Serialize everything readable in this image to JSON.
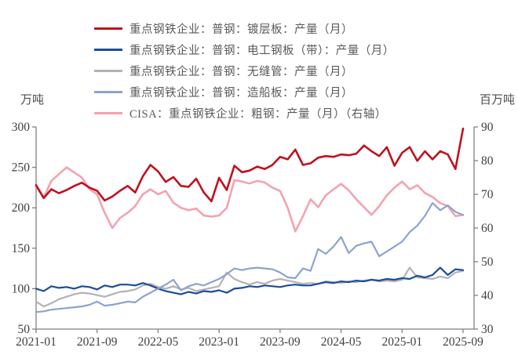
{
  "chart_data": {
    "type": "line",
    "title": "",
    "legend_position": "top-left",
    "x": [
      "2021-01",
      "2021-02",
      "2021-03",
      "2021-04",
      "2021-05",
      "2021-06",
      "2021-07",
      "2021-08",
      "2021-09",
      "2021-10",
      "2021-11",
      "2021-12",
      "2022-01",
      "2022-02",
      "2022-03",
      "2022-04",
      "2022-05",
      "2022-06",
      "2022-07",
      "2022-08",
      "2022-09",
      "2022-10",
      "2022-11",
      "2022-12",
      "2023-01",
      "2023-02",
      "2023-03",
      "2023-04",
      "2023-05",
      "2023-06",
      "2023-07",
      "2023-08",
      "2023-09",
      "2023-10",
      "2023-11",
      "2023-12",
      "2024-01",
      "2024-02",
      "2024-03",
      "2024-04",
      "2024-05",
      "2024-06",
      "2024-07",
      "2024-08",
      "2024-09",
      "2024-10",
      "2024-11",
      "2024-12",
      "2025-01",
      "2025-02",
      "2025-03",
      "2025-04",
      "2025-05",
      "2025-06",
      "2025-07",
      "2025-08",
      "2025-09"
    ],
    "x_tick_labels": [
      "2021-01",
      "2021-09",
      "2022-05",
      "2023-01",
      "2023-09",
      "2024-05",
      "2025-01",
      "2025-09"
    ],
    "x_tick_month_index": [
      0,
      8,
      16,
      24,
      32,
      40,
      48,
      56
    ],
    "left_axis": {
      "unit": "万吨",
      "min": 50,
      "max": 300,
      "ticks": [
        300,
        250,
        200,
        150,
        100,
        50
      ]
    },
    "right_axis": {
      "unit": "百万吨",
      "min": 30,
      "max": 90,
      "ticks": [
        90,
        80,
        70,
        60,
        50,
        40,
        30
      ]
    },
    "grid": false,
    "series": [
      {
        "id": "seamless-tube",
        "name": "重点钢铁企业：普钢：无缝管：产量（月）",
        "axis": "left",
        "color": "#b3b3b3",
        "values": [
          84,
          78,
          82,
          87,
          90,
          93,
          95,
          94,
          92,
          90,
          93,
          96,
          97,
          99,
          104,
          106,
          102,
          100,
          103,
          99,
          101,
          97,
          99,
          101,
          103,
          120,
          112,
          108,
          105,
          108,
          106,
          110,
          112,
          110,
          108,
          106,
          107,
          106,
          109,
          108,
          107,
          109,
          108,
          110,
          111,
          109,
          110,
          109,
          111,
          126,
          114,
          113,
          112,
          115,
          113,
          120,
          122
        ]
      },
      {
        "id": "electrical-sheet",
        "name": "重点钢铁企业：普钢：电工钢板（带）：产量（月）",
        "axis": "left",
        "color": "#1c4c9c",
        "values": [
          100,
          97,
          103,
          101,
          102,
          100,
          103,
          102,
          99,
          104,
          102,
          105,
          105,
          104,
          107,
          104,
          100,
          97,
          95,
          93,
          96,
          94,
          97,
          96,
          98,
          95,
          100,
          101,
          103,
          102,
          104,
          103,
          102,
          104,
          105,
          104,
          104,
          106,
          108,
          107,
          109,
          108,
          110,
          109,
          111,
          110,
          112,
          111,
          113,
          112,
          116,
          114,
          117,
          126,
          117,
          124,
          123
        ]
      },
      {
        "id": "crude-steel-cisa",
        "name": "CISA：重点钢铁企业：粗钢：产量（月）（右轴）",
        "axis": "right",
        "color": "#f3a3ae",
        "values": [
          72.5,
          69,
          74,
          76,
          78,
          76.5,
          75,
          71.5,
          70,
          64.5,
          60,
          63,
          64.5,
          66.5,
          70,
          71.5,
          70,
          71,
          67.5,
          66,
          65.3,
          65.8,
          63.7,
          63.4,
          63.7,
          66,
          74.2,
          73.8,
          73.2,
          74,
          73.5,
          72,
          71,
          66,
          59,
          63.5,
          68.5,
          66.2,
          69.7,
          71.5,
          73.1,
          71.2,
          68.5,
          66.2,
          63.9,
          66.5,
          69.7,
          72,
          73.8,
          71.5,
          72.7,
          70.4,
          69.2,
          67.4,
          66.5,
          63.5,
          63.9
        ]
      },
      {
        "id": "shipbuilding-plate",
        "name": "重点钢铁企业：普钢：造船板：产量（月）",
        "axis": "left",
        "color": "#8ca3cd",
        "values": [
          71,
          72,
          74,
          75,
          76,
          77,
          78,
          80,
          84,
          79,
          80,
          82,
          84,
          83,
          90,
          95,
          100,
          105,
          111,
          98,
          103,
          106,
          104,
          108,
          112,
          118,
          125,
          123,
          125,
          126,
          125,
          124,
          120,
          114,
          113,
          125,
          122,
          149,
          143,
          152,
          164,
          144,
          153,
          156,
          158,
          140,
          146,
          152,
          158,
          170,
          178,
          190,
          206,
          197,
          203,
          195,
          191
        ]
      },
      {
        "id": "coated-sheet",
        "name": "重点钢铁企业：普钢：镀层板：产量（月）",
        "axis": "left",
        "color": "#c0111f",
        "values": [
          228,
          212,
          223,
          218,
          222,
          227,
          231,
          225,
          221,
          209,
          214,
          221,
          227,
          219,
          239,
          253,
          245,
          232,
          238,
          227,
          226,
          236,
          219,
          208,
          237,
          222,
          252,
          244,
          246,
          251,
          248,
          253,
          263,
          260,
          272,
          253,
          255,
          262,
          264,
          263,
          266,
          265,
          267,
          277,
          270,
          264,
          275,
          252,
          268,
          275,
          258,
          270,
          260,
          270,
          266,
          248,
          298
        ]
      }
    ],
    "legend_order": [
      "coated-sheet",
      "electrical-sheet",
      "seamless-tube",
      "shipbuilding-plate",
      "crude-steel-cisa"
    ],
    "axis_color": "#7f7f7f",
    "label_color": "#404040"
  }
}
